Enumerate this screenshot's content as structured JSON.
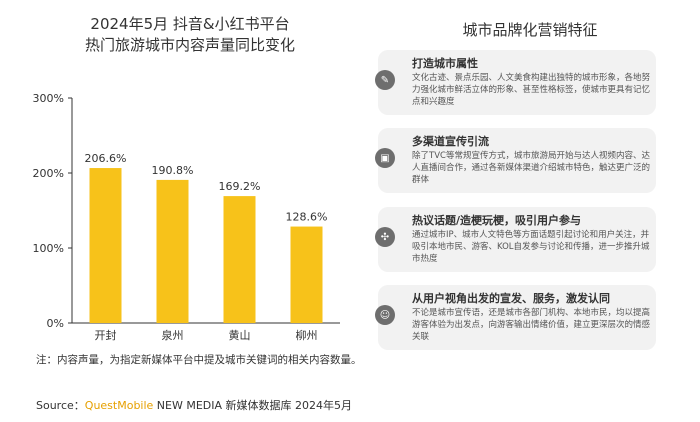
{
  "chart_data": {
    "type": "bar",
    "title_line1": "2024年5月 抖音&小红书平台",
    "title_line2": "热门旅游城市内容声量同比变化",
    "categories": [
      "开封",
      "泉州",
      "黄山",
      "柳州"
    ],
    "values": [
      206.6,
      190.8,
      169.2,
      128.6
    ],
    "data_labels": [
      "206.6%",
      "190.8%",
      "169.2%",
      "128.6%"
    ],
    "ylim": [
      0,
      300
    ],
    "yticks": [
      "0%",
      "100%",
      "200%",
      "300%"
    ],
    "bar_color": "#f7c21a",
    "grid": false
  },
  "right_panel": {
    "title": "城市品牌化营销特征",
    "cards": [
      {
        "icon": "check-icon",
        "title": "打造城市属性",
        "body": "文化古迹、景点乐园、人文美食构建出独特的城市形象，各地努力强化城市鲜活立体的形象、甚至性格标签，使城市更具有记忆点和兴趣度"
      },
      {
        "icon": "megaphone-icon",
        "title": "多渠道宣传引流",
        "body": "除了TVC等常规宣传方式，城市旅游局开始与达人视频内容、达人直播间合作，通过各新媒体渠道介绍城市特色，触达更广泛的群体"
      },
      {
        "icon": "hashtag-icon",
        "title": "热议话题/造梗玩梗，吸引用户参与",
        "body": "通过城市IP、城市人文特色等方面话题引起讨论和用户关注，并吸引本地市民、游客、KOL自发参与讨论和传播，进一步推升城市热度"
      },
      {
        "icon": "user-icon",
        "title": "从用户视角出发的宣发、服务，激发认同",
        "body": "不论是城市宣传语，还是城市各部门机构、本地市民，均以提高游客体验为出发点，向游客输出情绪价值，建立更深层次的情感关联"
      }
    ]
  },
  "footer": {
    "note": "注：内容声量，为指定新媒体平台中提及城市关键词的相关内容数量。",
    "source_label": "Source：",
    "source_brand": "QuestMobile",
    "source_rest": " NEW MEDIA 新媒体数据库 2024年5月"
  }
}
